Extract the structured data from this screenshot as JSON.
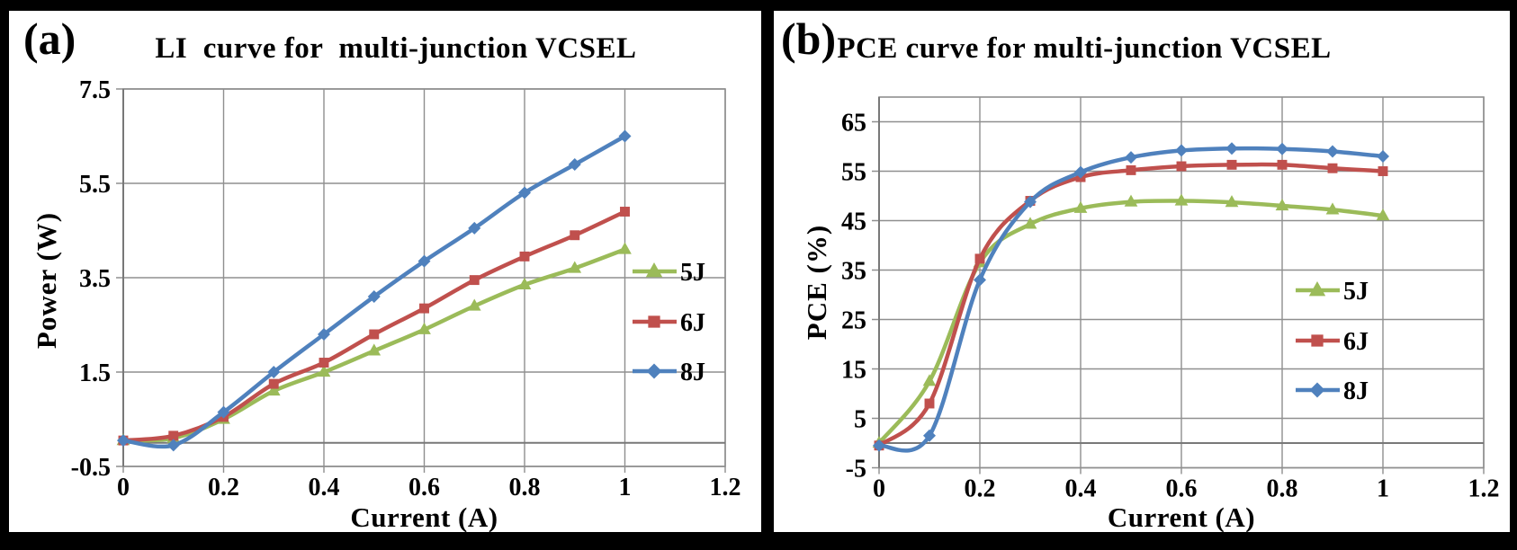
{
  "colors": {
    "background": "#000000",
    "panel": "#FFFFFF",
    "gridline": "#8F8F8F",
    "axis": "#787878",
    "text": "#000000",
    "series_5J": "#9BBB59",
    "series_6J": "#C0504D",
    "series_8J": "#4F81BD"
  },
  "chart_data": [
    {
      "id": "li-chart",
      "tag": "(a)",
      "type": "line",
      "title": "LI  curve for  multi-junction VCSEL",
      "xlabel": "Current (A)",
      "ylabel": "Power (W)",
      "x": [
        0,
        0.1,
        0.2,
        0.3,
        0.4,
        0.5,
        0.6,
        0.7,
        0.8,
        0.9,
        1.0
      ],
      "series": [
        {
          "name": "5J",
          "color": "#9BBB59",
          "marker": "triangle",
          "values": [
            0.05,
            0.1,
            0.5,
            1.1,
            1.5,
            1.95,
            2.4,
            2.9,
            3.35,
            3.7,
            4.1
          ]
        },
        {
          "name": "6J",
          "color": "#C0504D",
          "marker": "square",
          "values": [
            0.05,
            0.15,
            0.55,
            1.25,
            1.7,
            2.3,
            2.85,
            3.45,
            3.95,
            4.4,
            4.9
          ]
        },
        {
          "name": "8J",
          "color": "#4F81BD",
          "marker": "diamond",
          "values": [
            0.05,
            -0.05,
            0.65,
            1.5,
            2.3,
            3.1,
            3.85,
            4.55,
            5.3,
            5.9,
            6.5
          ]
        }
      ],
      "xlim": [
        0,
        1.2
      ],
      "ylim": [
        -0.5,
        7.5
      ],
      "xtick_values": [
        0,
        0.2,
        0.4,
        0.6,
        0.8,
        1,
        1.2
      ],
      "xtick_labels": [
        "0",
        "0.2",
        "0.4",
        "0.6",
        "0.8",
        "1",
        "1.2"
      ],
      "ytick_values": [
        -0.5,
        1.5,
        3.5,
        5.5,
        7.5
      ],
      "ytick_labels": [
        "-0.5",
        "1.5",
        "3.5",
        "5.5",
        "7.5"
      ],
      "grid": true,
      "smooth_lines": true,
      "legend_position": "inside right",
      "legend": [
        "5J",
        "6J",
        "8J"
      ]
    },
    {
      "id": "pce-chart",
      "tag": "(b)",
      "type": "line",
      "title": "PCE curve for multi-junction VCSEL",
      "xlabel": "Current (A)",
      "ylabel": "PCE (%)",
      "x": [
        0,
        0.1,
        0.2,
        0.3,
        0.4,
        0.5,
        0.6,
        0.7,
        0.8,
        0.9,
        1.0
      ],
      "series": [
        {
          "name": "5J",
          "color": "#9BBB59",
          "marker": "triangle",
          "values": [
            0,
            12.5,
            36.5,
            44.3,
            47.5,
            48.8,
            49,
            48.7,
            48,
            47.2,
            46
          ]
        },
        {
          "name": "6J",
          "color": "#C0504D",
          "marker": "square",
          "values": [
            -0.5,
            8,
            37.3,
            49,
            53.8,
            55.2,
            56,
            56.3,
            56.3,
            55.6,
            55
          ]
        },
        {
          "name": "8J",
          "color": "#4F81BD",
          "marker": "diamond",
          "values": [
            -0.5,
            1.5,
            33,
            48.8,
            54.8,
            57.8,
            59.2,
            59.6,
            59.5,
            59,
            58
          ]
        }
      ],
      "xlim": [
        0,
        1.2
      ],
      "ylim": [
        -5,
        70
      ],
      "xtick_values": [
        0,
        0.2,
        0.4,
        0.6,
        0.8,
        1,
        1.2
      ],
      "xtick_labels": [
        "0",
        "0.2",
        "0.4",
        "0.6",
        "0.8",
        "1",
        "1.2"
      ],
      "ytick_values": [
        -5,
        5,
        15,
        25,
        35,
        45,
        55,
        65
      ],
      "ytick_labels": [
        "-5",
        "5",
        "15",
        "25",
        "35",
        "45",
        "55",
        "65"
      ],
      "grid": true,
      "smooth_lines": true,
      "legend_position": "inside right",
      "legend": [
        "5J",
        "6J",
        "8J"
      ]
    }
  ]
}
